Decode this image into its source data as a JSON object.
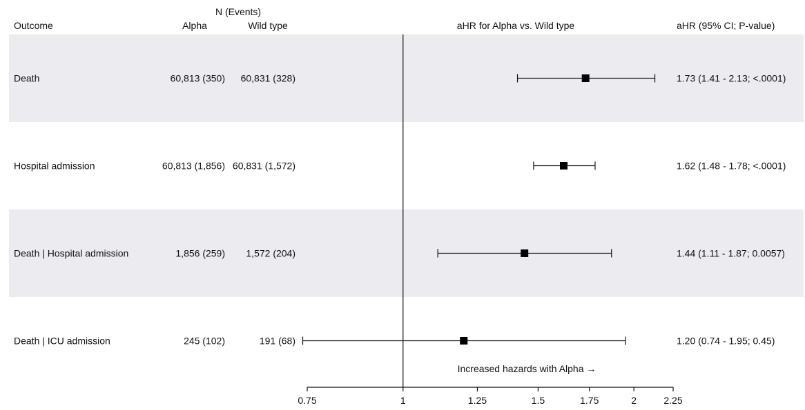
{
  "headers": {
    "outcome": "Outcome",
    "n_events": "N (Events)",
    "alpha": "Alpha",
    "wild_type": "Wild type",
    "plot_title": "aHR for Alpha vs. Wild type",
    "stats": "aHR (95% CI; P-value)"
  },
  "annotation": "Increased hazards with Alpha →",
  "band_color": "#ebebf0",
  "chart_data": {
    "type": "forest",
    "title": "aHR for Alpha vs. Wild type",
    "xlabel": "",
    "ylabel": "",
    "x_scale": "log",
    "xlim": [
      0.75,
      2.25
    ],
    "x_ticks": [
      0.75,
      1,
      1.25,
      1.5,
      1.75,
      2,
      2.25
    ],
    "x_tick_labels": [
      "0.75",
      "1",
      "1.25",
      "1.5",
      "1.75",
      "2",
      "2.25"
    ],
    "reference_line": 1,
    "legend": "none",
    "rows": [
      {
        "outcome": "Death",
        "alpha": "60,813 (350)",
        "wild_type": "60,831 (328)",
        "hr": 1.73,
        "lo": 1.41,
        "hi": 2.13,
        "label": "1.73 (1.41 - 2.13; <.0001)"
      },
      {
        "outcome": "Hospital admission",
        "alpha": "60,813 (1,856)",
        "wild_type": "60,831 (1,572)",
        "hr": 1.62,
        "lo": 1.48,
        "hi": 1.78,
        "label": "1.62 (1.48 - 1.78; <.0001)"
      },
      {
        "outcome": "Death | Hospital admission",
        "alpha": "1,856 (259)",
        "wild_type": "1,572 (204)",
        "hr": 1.44,
        "lo": 1.11,
        "hi": 1.87,
        "label": "1.44 (1.11 - 1.87; 0.0057)"
      },
      {
        "outcome": "Death | ICU admission",
        "alpha": "245 (102)",
        "wild_type": "191 (68)",
        "hr": 1.2,
        "lo": 0.74,
        "hi": 1.95,
        "label": "1.20 (0.74 - 1.95; 0.45)"
      }
    ]
  }
}
